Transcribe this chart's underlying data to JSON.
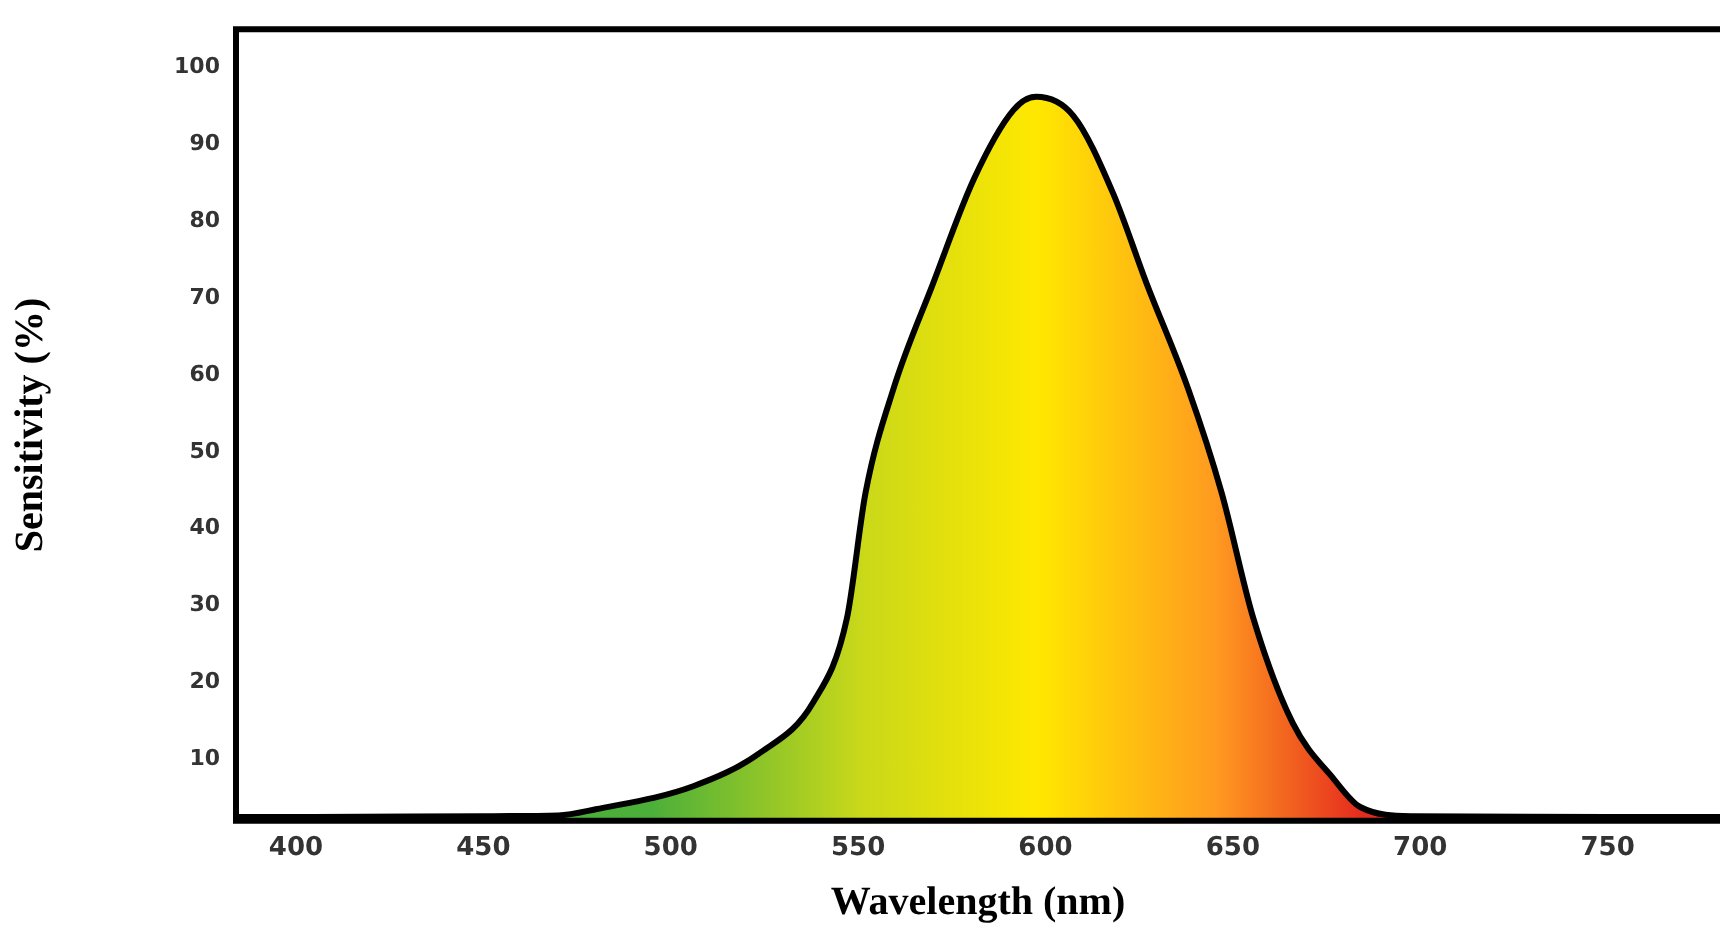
{
  "chart_data": {
    "type": "area",
    "xlabel": "Wavelength (nm)",
    "ylabel": "Sensitivity (%)",
    "x": [
      384,
      400,
      450,
      470,
      480,
      506,
      524,
      538,
      547,
      552,
      559.5,
      570,
      581,
      591.5,
      597.5,
      607.5,
      618,
      627,
      638,
      647,
      655.5,
      666,
      677,
      684,
      698,
      750,
      780
    ],
    "series": [
      {
        "color": "#000000",
        "values": [
          2.5,
          2.5,
          2.6,
          2.7,
          3.5,
          6.5,
          10.9,
          17.4,
          28.3,
          44.7,
          58.3,
          71.9,
          85.6,
          94.5,
          96.2,
          93.7,
          83.7,
          71.9,
          58.3,
          44.7,
          28.3,
          14.7,
          7.4,
          3.8,
          2.6,
          2.5,
          2.5
        ]
      }
    ],
    "xlim": [
      384,
      780
    ],
    "ylim": [
      2,
      105
    ],
    "xticks": [
      400,
      450,
      500,
      550,
      600,
      650,
      700,
      750
    ],
    "yticks": [
      10,
      20,
      30,
      40,
      50,
      60,
      70,
      80,
      90,
      100
    ],
    "grid": false,
    "legend": false
  }
}
